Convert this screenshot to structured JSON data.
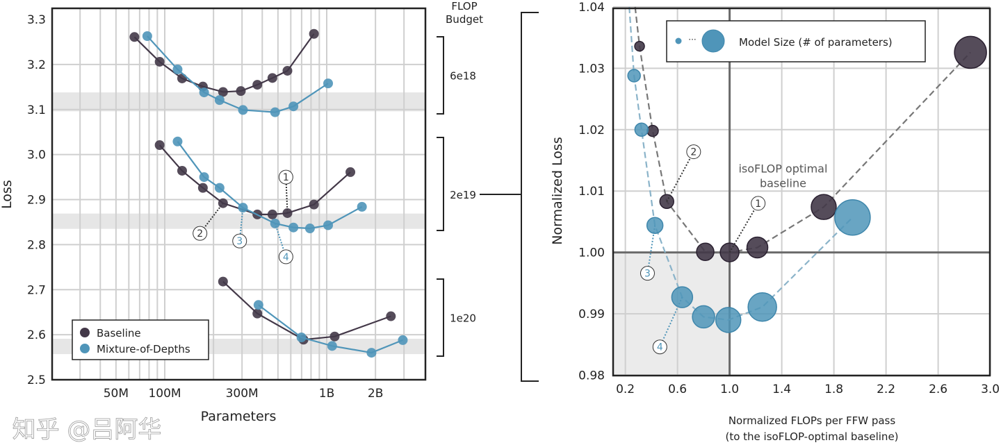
{
  "colors": {
    "baseline": "#433848",
    "mod": "#4f95b9",
    "grid": "#cfcfcf",
    "band": "#e6e6e6"
  },
  "watermark": "知乎 @吕阿华",
  "connector_label": "2e19",
  "chart_data": [
    {
      "type": "line",
      "xlabel": "Parameters",
      "ylabel": "Loss",
      "x_scale": "log",
      "xlim": [
        20,
        6000
      ],
      "ylim": [
        2.5,
        3.3
      ],
      "grid": true,
      "x_ticks": [
        {
          "v": 50,
          "label": "50M"
        },
        {
          "v": 100,
          "label": "100M"
        },
        {
          "v": 300,
          "label": "300M"
        },
        {
          "v": 1000,
          "label": "1B"
        },
        {
          "v": 2000,
          "label": "2B"
        }
      ],
      "y_ticks": [
        "2.5",
        "2.6",
        "2.7",
        "2.8",
        "2.9",
        "3.0",
        "3.1",
        "3.2",
        "3.3"
      ],
      "legend": {
        "position": "bottom-left",
        "entries": [
          "Baseline",
          "Mixture-of-Depths"
        ]
      },
      "budget_header": [
        "FLOP",
        "Budget"
      ],
      "groups": [
        {
          "budget": "6e18",
          "band": [
            3.096,
            3.138
          ],
          "baseline": {
            "x": [
              65,
              93,
              128,
              172,
              229,
              295,
              373,
              462,
              572,
              834
            ],
            "y": [
              3.261,
              3.206,
              3.169,
              3.151,
              3.139,
              3.141,
              3.155,
              3.17,
              3.186,
              3.268
            ]
          },
          "mod": {
            "x": [
              78,
              120,
              175,
              218,
              304,
              480,
              623,
              1020
            ],
            "y": [
              3.263,
              3.189,
              3.138,
              3.121,
              3.099,
              3.094,
              3.107,
              3.158
            ]
          }
        },
        {
          "budget": "2e19",
          "band": [
            2.835,
            2.869
          ],
          "baseline": {
            "x": [
              93,
              128,
              172,
              229,
              373,
              462,
              572,
              834,
              1400
            ],
            "y": [
              3.021,
              2.964,
              2.926,
              2.892,
              2.867,
              2.867,
              2.87,
              2.889,
              2.961
            ]
          },
          "mod": {
            "x": [
              120,
              175,
              218,
              304,
              480,
              623,
              788,
              1020,
              1650
            ],
            "y": [
              3.029,
              2.95,
              2.926,
              2.882,
              2.847,
              2.838,
              2.836,
              2.843,
              2.884
            ]
          }
        },
        {
          "budget": "1e20",
          "band": [
            2.557,
            2.591
          ],
          "baseline": {
            "x": [
              229,
              373,
              719,
              1120,
              2490
            ],
            "y": [
              2.718,
              2.647,
              2.589,
              2.596,
              2.641
            ]
          },
          "mod": {
            "x": [
              379,
              698,
              1080,
              1890,
              2950
            ],
            "y": [
              2.666,
              2.594,
              2.575,
              2.56,
              2.588
            ]
          }
        }
      ],
      "annotations": [
        {
          "label": "1",
          "series": "baseline",
          "at": [
            572,
            2.87
          ],
          "text_at": [
            560,
            2.95
          ]
        },
        {
          "label": "2",
          "series": "baseline",
          "at": [
            229,
            2.892
          ],
          "text_at": [
            165,
            2.825
          ]
        },
        {
          "label": "3",
          "series": "mod",
          "at": [
            304,
            2.882
          ],
          "text_at": [
            290,
            2.808
          ]
        },
        {
          "label": "4",
          "series": "mod",
          "at": [
            480,
            2.847
          ],
          "text_at": [
            560,
            2.773
          ]
        }
      ]
    },
    {
      "type": "scatter",
      "xlabel": [
        "Normalized FLOPs per FFW pass",
        "(to the isoFLOP-optimal baseline)"
      ],
      "ylabel": "Normalized Loss",
      "xlim": [
        0.105,
        3.0
      ],
      "ylim": [
        0.98,
        1.04
      ],
      "grid": true,
      "x_ticks": [
        "0.2",
        "0.6",
        "1.0",
        "1.4",
        "1.8",
        "2.2",
        "2.6",
        "3.0"
      ],
      "y_ticks": [
        "0.98",
        "0.99",
        "1.00",
        "1.01",
        "1.02",
        "1.03",
        "1.04"
      ],
      "legend": {
        "position": "top",
        "text": "Model Size (# of parameters)"
      },
      "reference": {
        "x": 1.0,
        "y": 1.0,
        "shaded": [
          [
            0.105,
            1.0
          ],
          [
            0.98,
            1.0
          ]
        ]
      },
      "text_annotation": [
        "isoFLOP optimal",
        "baseline"
      ],
      "series": [
        {
          "name": "Baseline",
          "x": [
            0.309,
            0.41,
            0.518,
            0.813,
            1.0,
            1.213,
            1.722,
            2.848
          ],
          "y": [
            1.0336,
            1.0198,
            1.0083,
            1.0001,
            1.0,
            1.0008,
            1.0074,
            1.0326
          ],
          "size_rank": [
            1,
            2,
            3,
            4,
            5,
            6,
            7,
            8
          ]
        },
        {
          "name": "Mixture-of-Depths",
          "x": [
            0.267,
            0.324,
            0.427,
            0.636,
            0.8,
            0.99,
            1.251,
            1.943
          ],
          "y": [
            1.0288,
            1.02,
            1.0044,
            0.9927,
            0.9895,
            0.989,
            0.9911,
            1.0057
          ],
          "size_rank": [
            1,
            2,
            3,
            4,
            5,
            6,
            7,
            8
          ]
        }
      ],
      "annotations": [
        {
          "label": "1",
          "series": "baseline",
          "at": [
            1.0,
            1.0
          ],
          "text_at": [
            1.219,
            1.008
          ]
        },
        {
          "label": "2",
          "series": "baseline",
          "at": [
            0.518,
            1.0083
          ],
          "text_at": [
            0.724,
            1.0164
          ]
        },
        {
          "label": "3",
          "series": "mod",
          "at": [
            0.427,
            1.0044
          ],
          "text_at": [
            0.37,
            0.9966
          ]
        },
        {
          "label": "4",
          "series": "mod",
          "at": [
            0.636,
            0.9927
          ],
          "text_at": [
            0.465,
            0.9846
          ]
        }
      ]
    }
  ]
}
